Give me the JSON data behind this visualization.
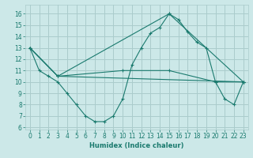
{
  "title": "",
  "xlabel": "Humidex (Indice chaleur)",
  "ylabel": "",
  "background_color": "#cce8e8",
  "grid_color": "#aacccc",
  "line_color": "#1a7a6e",
  "xlim": [
    -0.5,
    23.5
  ],
  "ylim": [
    5.8,
    16.8
  ],
  "yticks": [
    6,
    7,
    8,
    9,
    10,
    11,
    12,
    13,
    14,
    15,
    16
  ],
  "xticks": [
    0,
    1,
    2,
    3,
    4,
    5,
    6,
    7,
    8,
    9,
    10,
    11,
    12,
    13,
    14,
    15,
    16,
    17,
    18,
    19,
    20,
    21,
    22,
    23
  ],
  "series": [
    {
      "x": [
        0,
        1,
        2,
        3,
        4,
        5,
        6,
        7,
        8,
        9,
        10,
        11,
        12,
        13,
        14,
        15,
        16,
        17,
        18,
        19,
        20,
        21,
        22,
        23
      ],
      "y": [
        13,
        11,
        10.5,
        10,
        9,
        8,
        7,
        6.5,
        6.5,
        7,
        8.5,
        11.5,
        13,
        14.3,
        14.8,
        16,
        15.5,
        14.4,
        13.5,
        13,
        10,
        8.5,
        8,
        10
      ]
    },
    {
      "x": [
        0,
        3,
        10,
        15,
        20,
        23
      ],
      "y": [
        13,
        10.5,
        11,
        11,
        10,
        10
      ]
    },
    {
      "x": [
        0,
        3,
        15,
        23
      ],
      "y": [
        13,
        10.5,
        16,
        10
      ]
    },
    {
      "x": [
        0,
        3,
        23
      ],
      "y": [
        13,
        10.5,
        10
      ]
    }
  ]
}
